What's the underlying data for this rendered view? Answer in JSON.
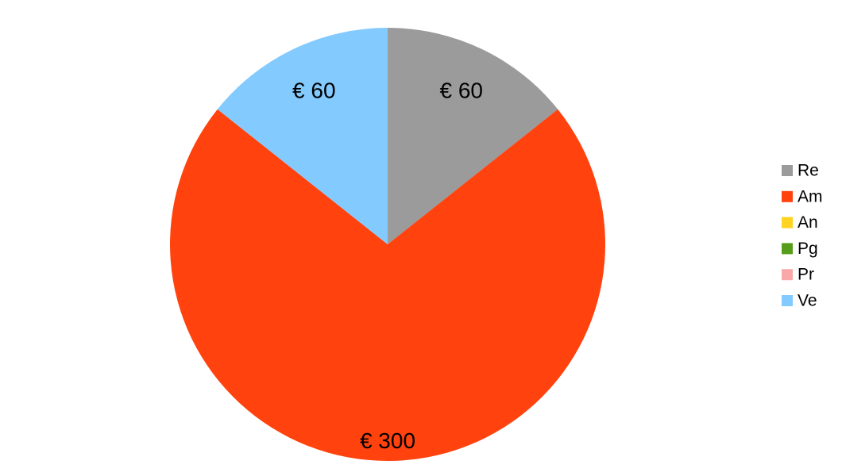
{
  "chart_data": {
    "type": "pie",
    "title": "",
    "categories": [
      "Re",
      "Am",
      "An",
      "Pg",
      "Pr",
      "Ve"
    ],
    "values": [
      60,
      300,
      0,
      0,
      0,
      60
    ],
    "data_labels": [
      "€ 60",
      "€ 300",
      "",
      "",
      "",
      "€ 60"
    ],
    "colors": [
      "#9b9b9b",
      "#ff420e",
      "#ffd320",
      "#579d1c",
      "#f8a8a8",
      "#83caff"
    ],
    "start_angle_deg": 0,
    "direction": "clockwise",
    "legend_position": "right"
  }
}
